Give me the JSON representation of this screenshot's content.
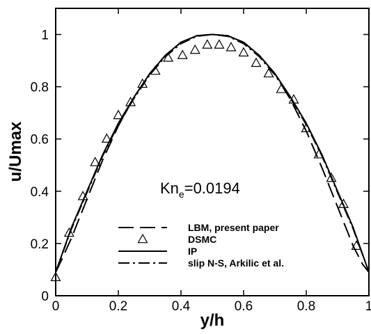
{
  "chart_data": {
    "type": "line",
    "xlabel": "y/h",
    "ylabel": "u/Umax",
    "xlim": [
      0,
      1
    ],
    "ylim": [
      0,
      1.1
    ],
    "x_ticks": [
      "0",
      "0.2",
      "0.4",
      "0.6",
      "0.8",
      "1"
    ],
    "x_tick_values": [
      0,
      0.2,
      0.4,
      0.6,
      0.8,
      1
    ],
    "y_ticks": [
      "0",
      "0.2",
      "0.4",
      "0.6",
      "0.8",
      "1"
    ],
    "y_tick_values": [
      0,
      0.2,
      0.4,
      0.6,
      0.8,
      1
    ],
    "grid": false,
    "annotation": {
      "main": "Kn",
      "subscript": "e",
      "value": "=0.0194"
    },
    "legend_position": "bottom-center",
    "series": [
      {
        "name": "LBM, present paper",
        "style": "long-dash",
        "x": [
          0,
          0.02,
          0.05,
          0.08,
          0.1,
          0.15,
          0.2,
          0.25,
          0.3,
          0.35,
          0.4,
          0.45,
          0.5,
          0.55,
          0.6,
          0.65,
          0.7,
          0.75,
          0.8,
          0.85,
          0.9,
          0.92,
          0.95,
          0.98,
          1
        ],
        "y": [
          0.09,
          0.14,
          0.22,
          0.31,
          0.37,
          0.52,
          0.65,
          0.76,
          0.85,
          0.92,
          0.97,
          0.995,
          1.0,
          0.995,
          0.97,
          0.92,
          0.85,
          0.75,
          0.63,
          0.49,
          0.34,
          0.28,
          0.19,
          0.12,
          0.09
        ]
      },
      {
        "name": "DSMC",
        "style": "triangle",
        "x": [
          0.0,
          0.043,
          0.087,
          0.126,
          0.163,
          0.2,
          0.239,
          0.277,
          0.318,
          0.359,
          0.405,
          0.445,
          0.484,
          0.522,
          0.56,
          0.6,
          0.64,
          0.68,
          0.72,
          0.76,
          0.8,
          0.84,
          0.88,
          0.919,
          0.96
        ],
        "y": [
          0.07,
          0.24,
          0.38,
          0.51,
          0.6,
          0.69,
          0.74,
          0.81,
          0.86,
          0.91,
          0.92,
          0.94,
          0.96,
          0.96,
          0.95,
          0.93,
          0.89,
          0.85,
          0.79,
          0.75,
          0.64,
          0.54,
          0.45,
          0.35,
          0.19
        ]
      },
      {
        "name": "IP",
        "style": "solid",
        "x": [
          0,
          0.05,
          0.1,
          0.15,
          0.2,
          0.25,
          0.3,
          0.35,
          0.4,
          0.45,
          0.5,
          0.55,
          0.6,
          0.65,
          0.7,
          0.75,
          0.8,
          0.85,
          0.9,
          0.95,
          1
        ],
        "y": [
          0.09,
          0.26,
          0.4,
          0.54,
          0.66,
          0.76,
          0.85,
          0.92,
          0.97,
          0.995,
          1.0,
          0.995,
          0.97,
          0.92,
          0.85,
          0.76,
          0.66,
          0.54,
          0.4,
          0.26,
          0.09
        ]
      },
      {
        "name": "slip N-S, Arkilic et al.",
        "style": "dash-dot",
        "x": [
          0,
          0.05,
          0.1,
          0.15,
          0.2,
          0.25,
          0.3,
          0.35,
          0.4,
          0.45,
          0.5,
          0.55,
          0.6,
          0.65,
          0.7,
          0.75,
          0.8,
          0.85,
          0.9,
          0.95,
          1
        ],
        "y": [
          0.09,
          0.255,
          0.395,
          0.535,
          0.655,
          0.755,
          0.845,
          0.915,
          0.965,
          0.993,
          1.0,
          0.993,
          0.965,
          0.915,
          0.845,
          0.755,
          0.655,
          0.535,
          0.395,
          0.255,
          0.09
        ]
      }
    ]
  }
}
